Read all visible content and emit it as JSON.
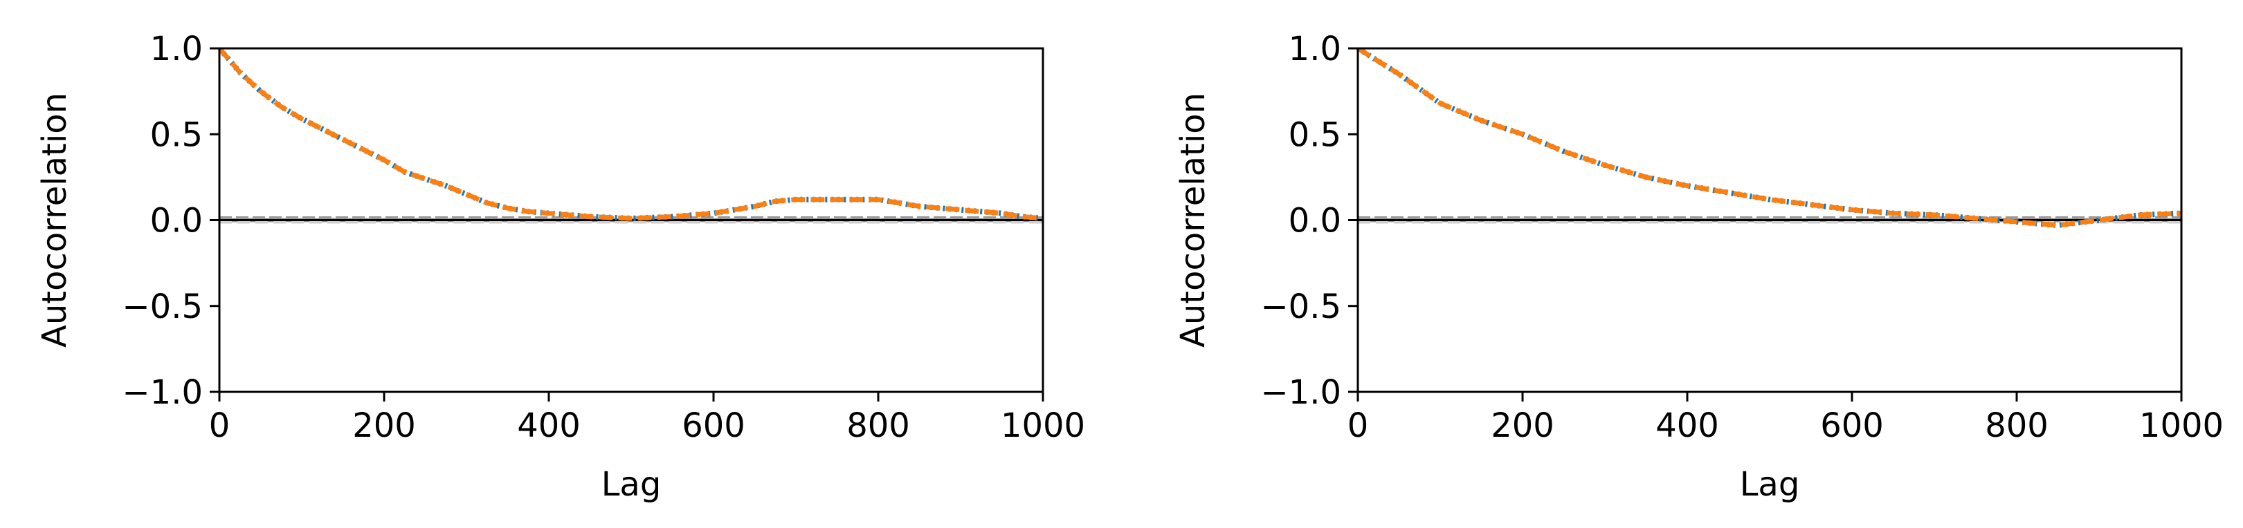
{
  "chart_data": [
    {
      "type": "line",
      "title": "",
      "xlabel": "Lag",
      "ylabel": "Autocorrelation",
      "xlim": [
        0,
        1000
      ],
      "ylim": [
        -1.0,
        1.0
      ],
      "xticks": [
        "0",
        "200",
        "400",
        "600",
        "800",
        "1000"
      ],
      "yticks": [
        "1.0",
        "0.5",
        "0.0",
        "−0.5",
        "−1.0"
      ],
      "grid": false,
      "legend": "none",
      "confidence_band": 0.012,
      "series": [
        {
          "color": "#1f77b4",
          "style": "dotted",
          "x": [
            0,
            25,
            50,
            75,
            100,
            150,
            200,
            225,
            250,
            275,
            300,
            325,
            350,
            375,
            400,
            450,
            500,
            550,
            600,
            650,
            675,
            700,
            750,
            800,
            825,
            850,
            900,
            950,
            975,
            1000
          ],
          "y": [
            1.0,
            0.86,
            0.75,
            0.66,
            0.59,
            0.47,
            0.35,
            0.28,
            0.24,
            0.2,
            0.15,
            0.1,
            0.07,
            0.05,
            0.04,
            0.02,
            0.01,
            0.02,
            0.04,
            0.08,
            0.11,
            0.12,
            0.12,
            0.12,
            0.1,
            0.08,
            0.06,
            0.04,
            0.02,
            0.01
          ]
        },
        {
          "color": "#ff7f0e",
          "style": "dashed",
          "x": [
            0,
            25,
            50,
            75,
            100,
            150,
            200,
            225,
            250,
            275,
            300,
            325,
            350,
            375,
            400,
            450,
            500,
            550,
            600,
            650,
            675,
            700,
            750,
            800,
            825,
            850,
            900,
            950,
            975,
            1000
          ],
          "y": [
            1.0,
            0.86,
            0.75,
            0.66,
            0.59,
            0.47,
            0.35,
            0.28,
            0.24,
            0.2,
            0.15,
            0.1,
            0.07,
            0.05,
            0.04,
            0.02,
            0.01,
            0.02,
            0.04,
            0.08,
            0.11,
            0.12,
            0.12,
            0.12,
            0.1,
            0.08,
            0.06,
            0.04,
            0.02,
            0.01
          ]
        }
      ]
    },
    {
      "type": "line",
      "title": "",
      "xlabel": "Lag",
      "ylabel": "Autocorrelation",
      "xlim": [
        0,
        1000
      ],
      "ylim": [
        -1.0,
        1.0
      ],
      "xticks": [
        "0",
        "200",
        "400",
        "600",
        "800",
        "1000"
      ],
      "yticks": [
        "1.0",
        "0.5",
        "0.0",
        "−0.5",
        "−1.0"
      ],
      "grid": false,
      "legend": "none",
      "confidence_band": 0.012,
      "series": [
        {
          "color": "#1f77b4",
          "style": "dotted",
          "x": [
            0,
            50,
            100,
            150,
            200,
            250,
            300,
            350,
            400,
            450,
            500,
            550,
            600,
            650,
            700,
            750,
            800,
            850,
            900,
            950,
            1000
          ],
          "y": [
            1.0,
            0.85,
            0.68,
            0.58,
            0.5,
            0.4,
            0.32,
            0.25,
            0.2,
            0.16,
            0.12,
            0.09,
            0.06,
            0.04,
            0.03,
            0.01,
            -0.01,
            -0.03,
            0.0,
            0.03,
            0.04
          ]
        },
        {
          "color": "#ff7f0e",
          "style": "dashed",
          "x": [
            0,
            50,
            100,
            150,
            200,
            250,
            300,
            350,
            400,
            450,
            500,
            550,
            600,
            650,
            700,
            750,
            800,
            850,
            900,
            950,
            1000
          ],
          "y": [
            1.0,
            0.85,
            0.68,
            0.58,
            0.5,
            0.4,
            0.32,
            0.25,
            0.2,
            0.16,
            0.12,
            0.09,
            0.06,
            0.04,
            0.03,
            0.01,
            -0.01,
            -0.03,
            0.0,
            0.03,
            0.04
          ]
        }
      ]
    }
  ]
}
